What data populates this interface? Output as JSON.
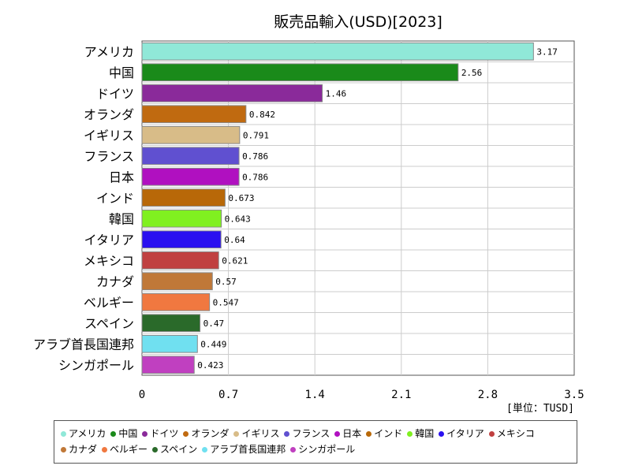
{
  "chart_data": {
    "type": "bar",
    "orientation": "horizontal",
    "title": "販売品輸入(USD)[2023]",
    "unit_label": "[単位：TUSD]",
    "xlim": [
      0,
      3.5
    ],
    "x_ticks": [
      "0",
      "0.7",
      "1.4",
      "2.1",
      "2.8",
      "3.5"
    ],
    "grid": true,
    "legend_position": "bottom",
    "categories": [
      "アメリカ",
      "中国",
      "ドイツ",
      "オランダ",
      "イギリス",
      "フランス",
      "日本",
      "インド",
      "韓国",
      "イタリア",
      "メキシコ",
      "カナダ",
      "ベルギー",
      "スペイン",
      "アラブ首長国連邦",
      "シンガポール"
    ],
    "values": [
      3.17,
      2.56,
      1.46,
      0.842,
      0.791,
      0.786,
      0.786,
      0.673,
      0.643,
      0.64,
      0.621,
      0.57,
      0.547,
      0.47,
      0.449,
      0.423
    ],
    "value_labels": [
      "3.17",
      "2.56",
      "1.46",
      "0.842",
      "0.791",
      "0.786",
      "0.786",
      "0.673",
      "0.643",
      "0.64",
      "0.621",
      "0.57",
      "0.547",
      "0.47",
      "0.449",
      "0.423"
    ],
    "colors": [
      "#90e8d8",
      "#1a8a1a",
      "#8a2a9a",
      "#c06a10",
      "#d8bc88",
      "#6050d0",
      "#b010c0",
      "#b86808",
      "#80f020",
      "#2a10f0",
      "#c04040",
      "#c07838",
      "#f07840",
      "#2a6a2a",
      "#70e0f0",
      "#c040c0"
    ]
  }
}
